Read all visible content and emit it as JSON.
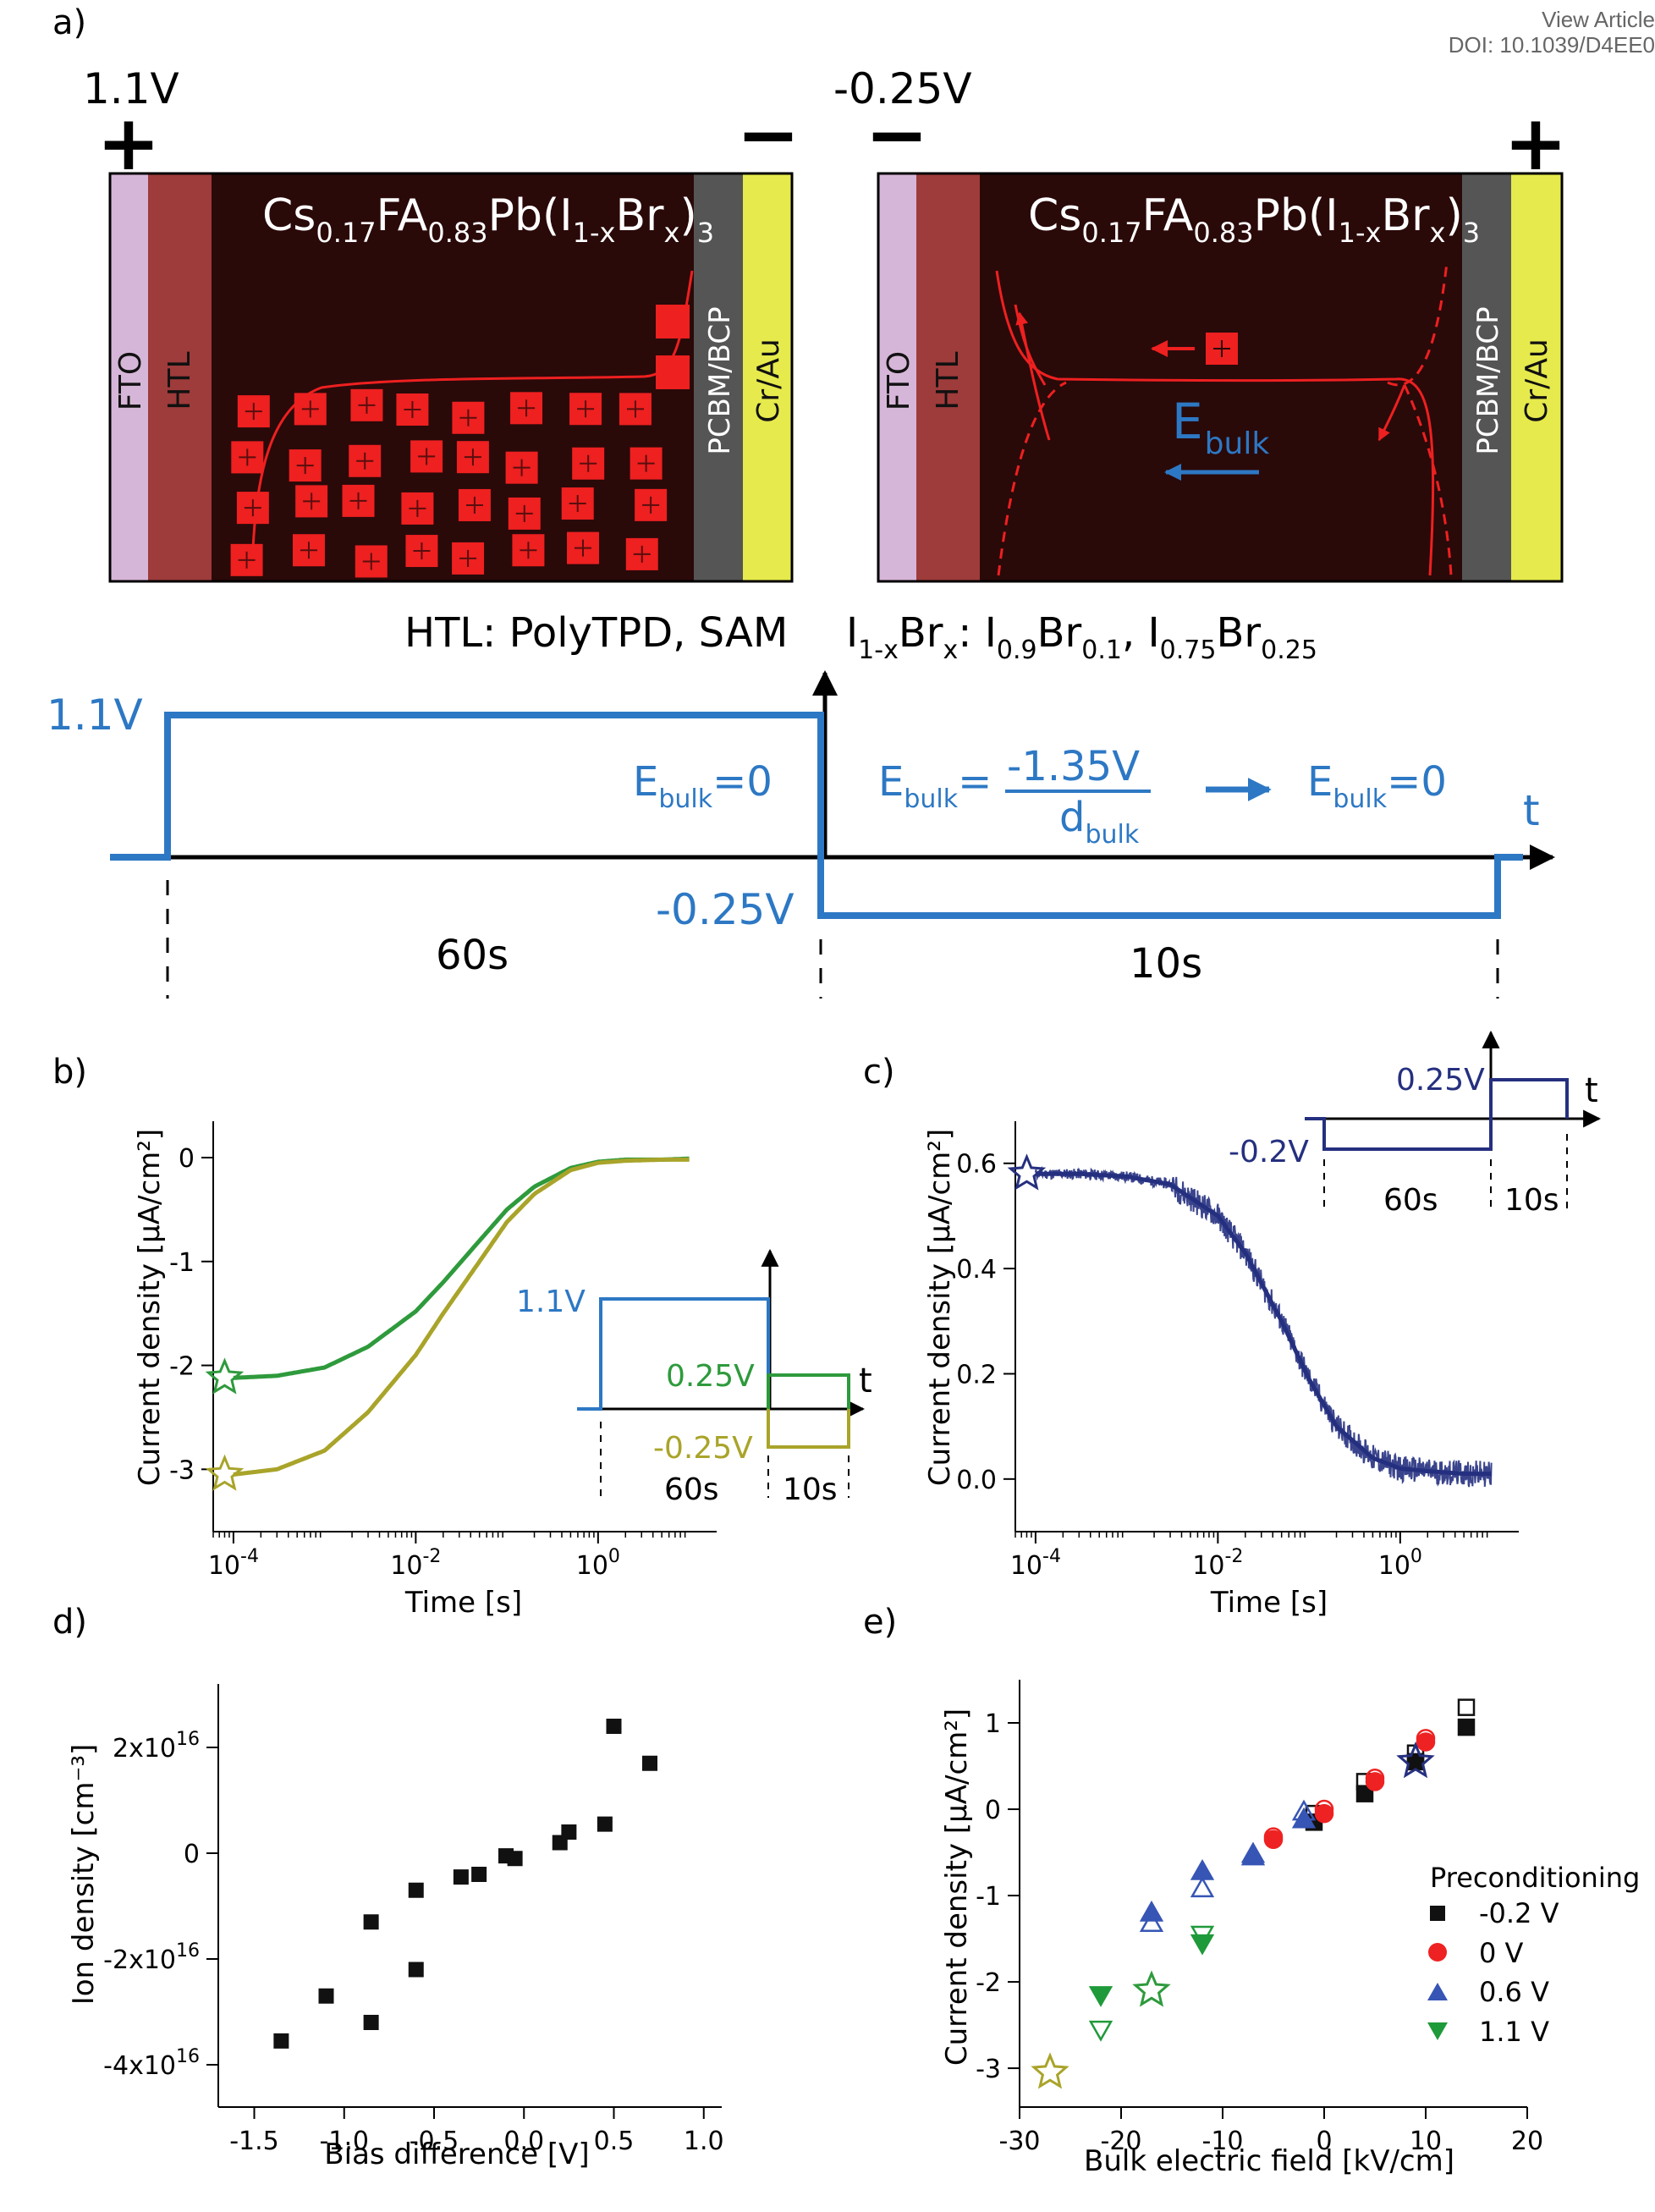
{
  "header": {
    "view_article": "View Article",
    "doi": "DOI: 10.1039/D4EE0"
  },
  "colors": {
    "perovskite": "#2a0909",
    "fto": "#d6b6d8",
    "htl": "#9e3b3b",
    "pcbm": "#555555",
    "crau": "#e6ea4c",
    "ion": "#ee2020",
    "pulse_blue": "#2d78c4",
    "b_green": "#2e9a3c",
    "b_olive": "#a9a42a",
    "c_navy": "#25307f",
    "marker_red": "#ee2222",
    "marker_blue": "#3655b5",
    "marker_green": "#1f9a3a"
  },
  "panel_a": {
    "label": "a)",
    "left_device": {
      "voltage": "1.1V",
      "left_sign": "+",
      "right_sign": "−",
      "formula": {
        "cs": "Cs",
        "cs_sub": "0.17",
        "fa": "FA",
        "fa_sub": "0.83",
        "pb": "Pb(I",
        "i_sub": "1-x",
        "br": "Br",
        "br_sub": "x",
        "close": ")",
        "close_sub": "3"
      },
      "layers": [
        "FTO",
        "HTL",
        "PCBM/BCP",
        "Cr/Au"
      ]
    },
    "right_device": {
      "voltage": "-0.25V",
      "left_sign": "−",
      "right_sign": "+",
      "formula": {
        "cs": "Cs",
        "cs_sub": "0.17",
        "fa": "FA",
        "fa_sub": "0.83",
        "pb": "Pb(I",
        "i_sub": "1-x",
        "br": "Br",
        "br_sub": "x",
        "close": ")",
        "close_sub": "3"
      },
      "layers": [
        "FTO",
        "HTL",
        "PCBM/BCP",
        "Cr/Au"
      ],
      "field_label": "E",
      "field_sub": "bulk"
    },
    "htl_caption": "HTL: PolyTPD, SAM",
    "halide_caption": {
      "a": "I",
      "a_sub": "1-x",
      "b": "Br",
      "b_sub": "x",
      "c": ": I",
      "c_sub": "0.9",
      "d": "Br",
      "d_sub": "0.1",
      "e": ", I",
      "e_sub": "0.75",
      "f": "Br",
      "f_sub": "0.25"
    },
    "pulse": {
      "v_high": "1.1V",
      "v_low": "-0.25V",
      "ebulk_zero_left": {
        "e": "E",
        "sub": "bulk",
        "rest": "=0"
      },
      "ebulk_eq": {
        "e": "E",
        "sub": "bulk",
        "rest": "="
      },
      "numerator": "-1.35V",
      "denominator": "d",
      "denominator_sub": "bulk",
      "ebulk_zero_right": {
        "e": "E",
        "sub": "bulk",
        "rest": "=0"
      },
      "t_label": "t",
      "dur_1": "60s",
      "dur_2": "10s"
    }
  },
  "panel_b": {
    "label": "b)",
    "ylabel": "Current density [µA/cm²]",
    "xlabel": "Time [s]",
    "inset": {
      "v1": "1.1V",
      "v2": "0.25V",
      "v3": "-0.25V",
      "t": "t",
      "d1": "60s",
      "d2": "10s"
    }
  },
  "panel_c": {
    "label": "c)",
    "ylabel": "Current density [µA/cm²]",
    "xlabel": "Time [s]",
    "inset": {
      "v1": "0.25V",
      "v2": "-0.2V",
      "t": "t",
      "d1": "60s",
      "d2": "10s"
    }
  },
  "panel_d": {
    "label": "d)",
    "ylabel": "Ion density [cm⁻³]",
    "xlabel": "Bias difference [V]"
  },
  "panel_e": {
    "label": "e)",
    "ylabel": "Current density [µA/cm²]",
    "xlabel": "Bulk electric field [kV/cm]",
    "legend_title": "Preconditioning",
    "legend": [
      "-0.2 V",
      "0 V",
      "0.6 V",
      "1.1 V"
    ]
  },
  "chart_data": [
    {
      "panel": "b",
      "type": "line",
      "x_scale": "log",
      "xlim": [
        6e-05,
        20
      ],
      "ylim": [
        -3.6,
        0.35
      ],
      "x_tick_labels": [
        "10-4",
        "10-2",
        "100"
      ],
      "x_ticks": [
        0.0001,
        0.01,
        1
      ],
      "y_ticks": [
        0,
        -1,
        -2,
        -3
      ],
      "series": [
        {
          "color": "green",
          "x": [
            0.0001,
            0.0003,
            0.001,
            0.003,
            0.01,
            0.02,
            0.05,
            0.1,
            0.2,
            0.5,
            1,
            2,
            5,
            10
          ],
          "y": [
            -2.12,
            -2.1,
            -2.02,
            -1.82,
            -1.48,
            -1.2,
            -0.8,
            -0.5,
            -0.28,
            -0.1,
            -0.04,
            -0.02,
            -0.02,
            -0.01
          ]
        },
        {
          "color": "olive",
          "x": [
            0.0001,
            0.0003,
            0.001,
            0.003,
            0.01,
            0.02,
            0.05,
            0.1,
            0.2,
            0.5,
            1,
            2,
            5,
            10
          ],
          "y": [
            -3.05,
            -3.0,
            -2.82,
            -2.45,
            -1.9,
            -1.5,
            -1.0,
            -0.62,
            -0.35,
            -0.12,
            -0.05,
            -0.03,
            -0.02,
            -0.02
          ]
        }
      ],
      "stars": [
        {
          "x": 8e-05,
          "y": -2.12,
          "color": "green"
        },
        {
          "x": 8e-05,
          "y": -3.05,
          "color": "olive"
        }
      ]
    },
    {
      "panel": "c",
      "type": "line",
      "x_scale": "log",
      "xlim": [
        6e-05,
        20
      ],
      "ylim": [
        -0.1,
        0.68
      ],
      "x_tick_labels": [
        "10-4",
        "10-2",
        "100"
      ],
      "x_ticks": [
        0.0001,
        0.01,
        1
      ],
      "y_ticks": [
        0.6,
        0.4,
        0.2,
        0.0
      ],
      "series": [
        {
          "color": "navy",
          "x": [
            0.0001,
            0.0003,
            0.001,
            0.003,
            0.01,
            0.02,
            0.05,
            0.1,
            0.2,
            0.5,
            1,
            2,
            5,
            10
          ],
          "y": [
            0.58,
            0.58,
            0.575,
            0.56,
            0.5,
            0.43,
            0.3,
            0.19,
            0.1,
            0.04,
            0.02,
            0.015,
            0.01,
            0.01
          ]
        }
      ],
      "stars": [
        {
          "x": 8e-05,
          "y": 0.58,
          "color": "navy"
        }
      ]
    },
    {
      "panel": "d",
      "type": "scatter",
      "xlim": [
        -1.7,
        1.1
      ],
      "ylim": [
        -4.8e+16,
        3.2e+16
      ],
      "x_ticks": [
        -1.5,
        -1.0,
        -0.5,
        0.0,
        0.5,
        1.0
      ],
      "x_tick_labels": [
        "-1.5",
        "-1.0",
        "-0.5",
        "0.0",
        "0.5",
        "1.0"
      ],
      "y_ticks": [
        2e+16,
        0,
        -2e+16,
        -4e+16
      ],
      "y_tick_labels": [
        "2x10",
        "0",
        "-2x10",
        "-4x10"
      ],
      "y_tick_exp": "16",
      "points": [
        [
          -1.35,
          -3.55e+16
        ],
        [
          -1.1,
          -2.7e+16
        ],
        [
          -0.85,
          -3.2e+16
        ],
        [
          -0.85,
          -1.3e+16
        ],
        [
          -0.6,
          -2.2e+16
        ],
        [
          -0.6,
          -7000000000000000.0
        ],
        [
          -0.35,
          -4500000000000000.0
        ],
        [
          -0.25,
          -4000000000000000.0
        ],
        [
          -0.1,
          -500000000000000.0
        ],
        [
          -0.05,
          -1000000000000000.0
        ],
        [
          0.2,
          2000000000000000.0
        ],
        [
          0.25,
          4000000000000000.0
        ],
        [
          0.45,
          5500000000000000.0
        ],
        [
          0.5,
          2.4e+16
        ],
        [
          0.7,
          1.7e+16
        ]
      ]
    },
    {
      "panel": "e",
      "type": "scatter",
      "xlim": [
        -30,
        20
      ],
      "ylim": [
        -3.45,
        1.5
      ],
      "x_ticks": [
        -30,
        -20,
        -10,
        0,
        10,
        20
      ],
      "y_ticks": [
        1,
        0,
        -1,
        -2,
        -3
      ],
      "series": [
        {
          "name": "-0.2 V",
          "marker": "square",
          "color": "#111111",
          "filled": [
            [
              14,
              0.95
            ],
            [
              9,
              0.55
            ],
            [
              4,
              0.18
            ],
            [
              -1,
              -0.15
            ]
          ],
          "open": [
            [
              14,
              1.18
            ],
            [
              9,
              0.65
            ],
            [
              4,
              0.32
            ],
            [
              -1,
              -0.05
            ]
          ]
        },
        {
          "name": "0 V",
          "marker": "circle",
          "color": "#ee2222",
          "filled": [
            [
              10,
              0.78
            ],
            [
              5,
              0.32
            ],
            [
              0,
              -0.05
            ],
            [
              -5,
              -0.35
            ]
          ],
          "open": [
            [
              10,
              0.82
            ],
            [
              5,
              0.36
            ],
            [
              0,
              0.0
            ],
            [
              -5,
              -0.32
            ]
          ]
        },
        {
          "name": "0.6 V",
          "marker": "triangle-up",
          "color": "#3655b5",
          "filled": [
            [
              -2,
              -0.12
            ],
            [
              -7,
              -0.55
            ],
            [
              -12,
              -0.72
            ],
            [
              -17,
              -1.2
            ]
          ],
          "open": [
            [
              -2,
              -0.03
            ],
            [
              -7,
              -0.52
            ],
            [
              -12,
              -0.92
            ],
            [
              -17,
              -1.32
            ]
          ]
        },
        {
          "name": "1.1 V",
          "marker": "triangle-down",
          "color": "#1f9a3a",
          "filled": [
            [
              -12,
              -1.55
            ],
            [
              -22,
              -2.15
            ]
          ],
          "open": [
            [
              -12,
              -1.45
            ],
            [
              -22,
              -2.55
            ]
          ]
        }
      ],
      "stars": [
        {
          "x": 9,
          "y": 0.55,
          "color": "#25307f"
        },
        {
          "x": -17,
          "y": -2.1,
          "color": "#2e9a3c"
        },
        {
          "x": -27,
          "y": -3.05,
          "color": "#a9a42a"
        }
      ]
    }
  ]
}
